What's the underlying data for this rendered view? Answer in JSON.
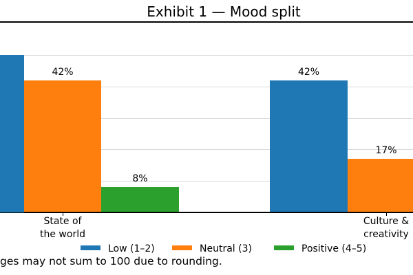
{
  "chart_data": {
    "type": "bar",
    "title": "Exhibit 1 — Mood split",
    "categories": [
      "State of the world",
      "Culture & creativity"
    ],
    "categories_lines": [
      [
        "State of",
        "the world"
      ],
      [
        "Culture &",
        "creativity"
      ]
    ],
    "series": [
      {
        "name": "Low (1–2)",
        "slug": "low",
        "color": "#1f77b4",
        "values": [
          50,
          42
        ]
      },
      {
        "name": "Neutral (3)",
        "slug": "neutral",
        "color": "#ff7f0e",
        "values": [
          42,
          17
        ]
      },
      {
        "name": "Positive (4–5)",
        "slug": "positive",
        "color": "#2ca02c",
        "values": [
          8,
          null
        ]
      }
    ],
    "value_label_format": "{v}%",
    "visible_value_labels": [
      "42%",
      "8%",
      "42%",
      "17%"
    ],
    "ylim": [
      0,
      60
    ],
    "grid": "horizontal gridlines every 10, light gray",
    "legend_position": "bottom",
    "note": "ges may not sum to 100 due to rounding.",
    "axis_color": "#000000",
    "gridline_color": "#d9d9d9"
  }
}
